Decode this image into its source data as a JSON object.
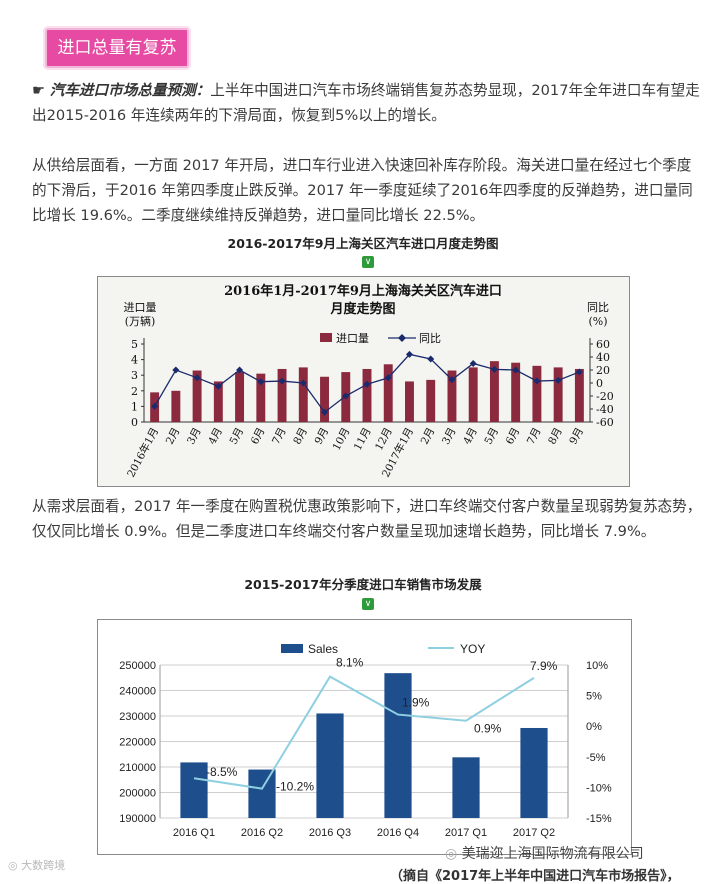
{
  "header": {
    "badge": "进口总量有复苏"
  },
  "para1": {
    "icon": "☛",
    "bold": "汽车进口市场总量预测：",
    "text": "上半年中国进口汽车市场终端销售复苏态势显现，2017年全年进口车有望走出2015-2016 年连续两年的下滑局面，恢复到5%以上的增长。"
  },
  "para2": {
    "text": "从供给层面看，一方面 2017 年开局，进口车行业进入快速回补库存阶段。海关进口量在经过七个季度的下滑后，于2016 年第四季度止跌反弹。2017 年一季度延续了2016年四季度的反弹趋势，进口量同比增长 19.6%。二季度继续维持反弹趋势，进口量同比增长 22.5%。"
  },
  "caption1": "2016-2017年9月上海关区汽车进口月度走势图",
  "para3": {
    "text": "从需求层面看，2017 年一季度在购置税优惠政策影响下，进口车终端交付客户数量呈现弱势复苏态势，仅仅同比增长 0.9%。但是二季度进口车终端交付客户数量呈现加速增长趋势，同比增长 7.9%。"
  },
  "caption2": "2015-2017年分季度进口车销售市场发展",
  "footer": {
    "watermark_left": "大数跨境",
    "company": "美瑞迩上海国际物流有限公司",
    "source": "（摘自《2017年上半年中国进口汽车市场报告》，"
  },
  "chart_data": [
    {
      "type": "bar",
      "title": "2016年1月-2017年9月上海海关关区汽车进口月度走势图",
      "title_lines": [
        "2016年1月-2017年9月上海海关关区汽车进口",
        "月度走势图"
      ],
      "ylabel_left": [
        "进口量",
        "(万辆)"
      ],
      "ylabel_right": [
        "同比",
        "(%)"
      ],
      "categories": [
        "2016年1月",
        "2月",
        "3月",
        "4月",
        "5月",
        "6月",
        "7月",
        "8月",
        "9月",
        "10月",
        "11月",
        "12月",
        "2017年1月",
        "2月",
        "3月",
        "4月",
        "5月",
        "6月",
        "7月",
        "8月",
        "9月"
      ],
      "series": [
        {
          "name": "进口量",
          "kind": "bar",
          "axis": "left",
          "values": [
            1.9,
            2.0,
            3.3,
            2.6,
            3.2,
            3.1,
            3.4,
            3.5,
            2.9,
            3.2,
            3.4,
            3.7,
            2.6,
            2.7,
            3.3,
            3.5,
            3.9,
            3.8,
            3.6,
            3.5,
            3.4
          ]
        },
        {
          "name": "同比",
          "kind": "line",
          "axis": "right",
          "values": [
            -36,
            20,
            8,
            -5,
            20,
            2,
            3,
            0,
            -45,
            -20,
            -2,
            8,
            44,
            37,
            5,
            30,
            21,
            20,
            3,
            4,
            17
          ]
        }
      ],
      "ylim_left": [
        0,
        5
      ],
      "yticks_left": [
        0,
        1,
        2,
        3,
        4,
        5
      ],
      "ylim_right": [
        -60,
        60
      ],
      "yticks_right": [
        60,
        40,
        20,
        0,
        -20,
        -40,
        -60
      ],
      "legend": "top",
      "grid": false,
      "colors": {
        "bar": "#8b2a3e",
        "line": "#1a2a6c"
      }
    },
    {
      "type": "bar",
      "categories": [
        "2016 Q1",
        "2016 Q2",
        "2016 Q3",
        "2016 Q4",
        "2017 Q1",
        "2017 Q2"
      ],
      "series": [
        {
          "name": "Sales",
          "kind": "bar",
          "axis": "left",
          "values": [
            211800,
            209000,
            231000,
            246800,
            213800,
            225300
          ]
        },
        {
          "name": "YOY",
          "kind": "line",
          "axis": "right",
          "values": [
            -8.5,
            -10.2,
            8.1,
            1.9,
            0.9,
            7.9
          ],
          "labels": [
            "-8.5%",
            "-10.2%",
            "8.1%",
            "1.9%",
            "0.9%",
            "7.9%"
          ]
        }
      ],
      "ylim_left": [
        190000,
        250000
      ],
      "yticks_left": [
        190000,
        200000,
        210000,
        220000,
        230000,
        240000,
        250000
      ],
      "ylim_right": [
        -15,
        10
      ],
      "yticks_right": [
        "10%",
        "5%",
        "0%",
        "-5%",
        "-10%",
        "-15%"
      ],
      "yticks_right_values": [
        10,
        5,
        0,
        -5,
        -10,
        -15
      ],
      "legend": "top",
      "grid": true,
      "colors": {
        "bar": "#1f4e8c",
        "line": "#8ecfe0",
        "grid": "#cfcfcf"
      }
    }
  ]
}
